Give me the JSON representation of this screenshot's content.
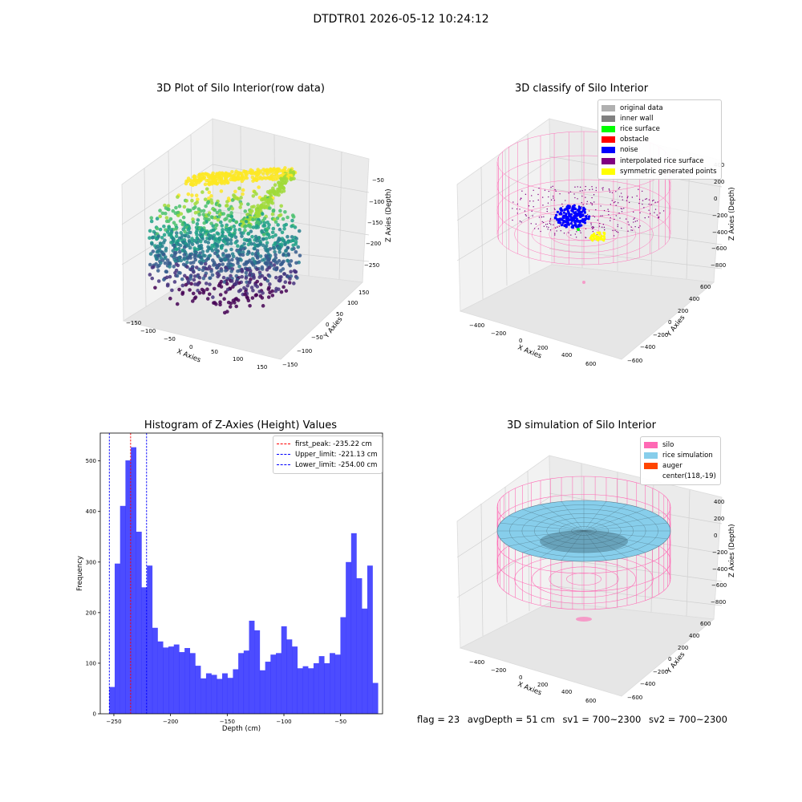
{
  "suptitle": "DTDTR01 2026-05-12 10:24:12",
  "panels": {
    "raw": {
      "title": "3D Plot of Silo Interior(row data)",
      "xlabel": "X Axies",
      "ylabel": "Y Axies",
      "zlabel": "Z Axies (Depth)",
      "xticks": [
        "−150",
        "−100",
        "−50",
        "0",
        "50",
        "100",
        "150"
      ],
      "yticks": [
        "150",
        "100",
        "50",
        "0",
        "−50",
        "−100",
        "−150"
      ],
      "zticks": [
        "−50",
        "−100",
        "−150",
        "−200",
        "−250"
      ]
    },
    "classify": {
      "title": "3D classify of Silo Interior",
      "xlabel": "X Axies",
      "ylabel": "Y Axies",
      "zlabel": "Z Axies (Depth)",
      "xticks": [
        "−400",
        "−200",
        "0",
        "200",
        "400",
        "600"
      ],
      "yticks": [
        "600",
        "400",
        "200",
        "0",
        "−200",
        "−400",
        "−600"
      ],
      "zticks": [
        "200",
        "0",
        "−200",
        "−400",
        "−600",
        "−800"
      ],
      "ztop": "400",
      "legend": [
        {
          "label": "original data",
          "color": "#b0b0b0"
        },
        {
          "label": "inner wall",
          "color": "#808080"
        },
        {
          "label": "rice surface",
          "color": "#00ff00"
        },
        {
          "label": "obstacle",
          "color": "#ff0000"
        },
        {
          "label": "noise",
          "color": "#0000ff"
        },
        {
          "label": "interpolated rice surface",
          "color": "#800080"
        },
        {
          "label": "symmetric generated points",
          "color": "#ffff00"
        }
      ]
    },
    "simulation": {
      "title": "3D simulation of Silo Interior",
      "xlabel": "X Axies",
      "ylabel": "Y Axies",
      "zlabel": "Z Axies (Depth)",
      "xticks": [
        "−400",
        "−200",
        "0",
        "200",
        "400",
        "600"
      ],
      "yticks": [
        "600",
        "400",
        "200",
        "0",
        "−200",
        "−400",
        "−600"
      ],
      "zticks": [
        "400",
        "200",
        "0",
        "−200",
        "−400",
        "−600",
        "−800"
      ],
      "legend": [
        {
          "label": "silo",
          "color": "#ff69b4"
        },
        {
          "label": "rice simulation",
          "color": "#87ceeb"
        },
        {
          "label": "auger",
          "color": "#ff4500"
        },
        {
          "label": "center(118,-19)",
          "color": ""
        }
      ]
    }
  },
  "chart_data": {
    "type": "bar",
    "title": "Histogram of Z-Axies (Height) Values",
    "xlabel": "Depth (cm)",
    "ylabel": "Frequency",
    "bar_color": "#0000ff",
    "xlim": [
      -262,
      -13
    ],
    "ylim": [
      0,
      555
    ],
    "bin_start": -254.0,
    "bin_width": 4.74,
    "values": [
      53,
      297,
      411,
      501,
      527,
      360,
      250,
      293,
      170,
      143,
      131,
      133,
      137,
      122,
      130,
      120,
      95,
      70,
      80,
      77,
      69,
      80,
      71,
      88,
      120,
      125,
      184,
      165,
      86,
      103,
      117,
      120,
      173,
      147,
      133,
      90,
      94,
      90,
      100,
      114,
      100,
      120,
      117,
      191,
      300,
      357,
      268,
      208,
      293,
      61
    ],
    "xticks": [
      -250,
      -200,
      -150,
      -100,
      -50
    ],
    "yticks": [
      0,
      100,
      200,
      300,
      400,
      500
    ],
    "xtick_labels": [
      "−250",
      "−200",
      "−150",
      "−100",
      "−50"
    ],
    "ytick_labels": [
      "0",
      "100",
      "200",
      "300",
      "400",
      "500"
    ],
    "lines": [
      {
        "x": -235.22,
        "color": "#ff0000",
        "label": "first_peak: -235.22 cm"
      },
      {
        "x": -221.13,
        "color": "#0000ff",
        "label": "Upper_limit: -221.13 cm"
      },
      {
        "x": -254.0,
        "color": "#0000ff",
        "label": "Lower_limit: -254.00 cm"
      }
    ],
    "legend_position": "top-right"
  },
  "footer": {
    "flag": "flag = 23",
    "avg": "avgDepth = 51 cm",
    "sv1": "sv1 = 700~2300",
    "sv2": "sv2 = 700~2300"
  }
}
